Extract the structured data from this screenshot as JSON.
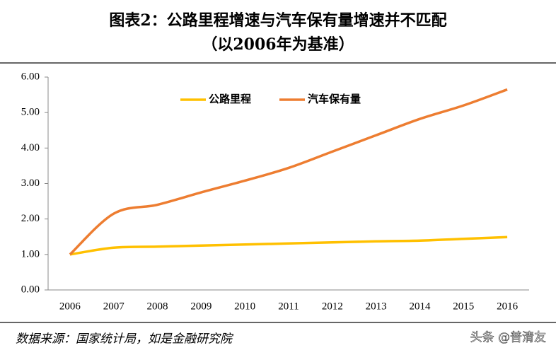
{
  "chart_data": {
    "type": "line",
    "title": "图表2：公路里程增速与汽车保有量增速并不匹配",
    "subtitle": "（以2006年为基准）",
    "categories": [
      "2006",
      "2007",
      "2008",
      "2009",
      "2010",
      "2011",
      "2012",
      "2013",
      "2014",
      "2015",
      "2016"
    ],
    "series": [
      {
        "name": "公路里程",
        "color": "#ffc000",
        "values": [
          1.0,
          1.19,
          1.22,
          1.25,
          1.28,
          1.31,
          1.34,
          1.37,
          1.39,
          1.44,
          1.49
        ]
      },
      {
        "name": "汽车保有量",
        "color": "#ed7d31",
        "values": [
          1.0,
          2.15,
          2.4,
          2.75,
          3.08,
          3.44,
          3.9,
          4.36,
          4.82,
          5.2,
          5.65
        ]
      }
    ],
    "ylim": [
      0,
      6
    ],
    "yticks": [
      {
        "value": 0,
        "label": "0.00"
      },
      {
        "value": 1,
        "label": "1.00"
      },
      {
        "value": 2,
        "label": "2.00"
      },
      {
        "value": 3,
        "label": "3.00"
      },
      {
        "value": 4,
        "label": "4.00"
      },
      {
        "value": 5,
        "label": "5.00"
      },
      {
        "value": 6,
        "label": "6.00"
      }
    ],
    "legend": "top",
    "source": "数据来源：国家统计局，如是金融研究院",
    "watermark": "头条 @普清友"
  }
}
